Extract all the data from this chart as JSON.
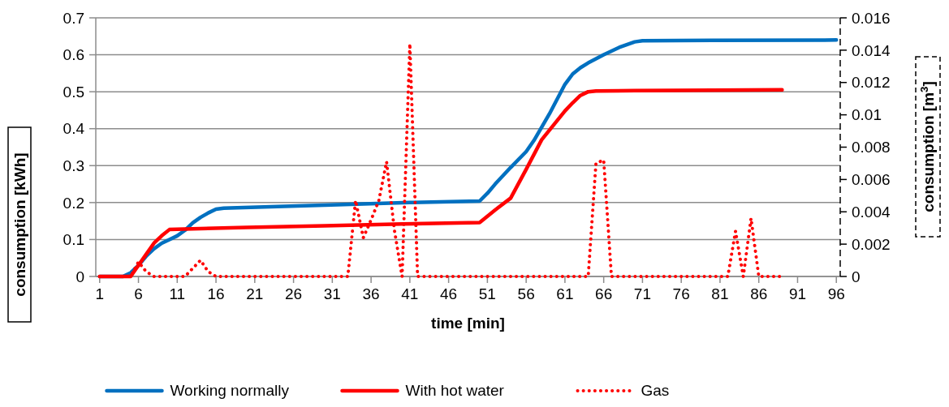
{
  "chart_data": {
    "type": "line",
    "xlabel": "time [min]",
    "ylabel": "consumption [kWh]",
    "y2label": "consumption [m$^{3}$]",
    "xlim": [
      0.5,
      96.5
    ],
    "xticks": [
      1,
      6,
      11,
      16,
      21,
      26,
      31,
      36,
      41,
      46,
      51,
      56,
      61,
      66,
      71,
      76,
      81,
      86,
      91,
      96
    ],
    "ylim": [
      0,
      0.7
    ],
    "yticks": [
      0,
      0.1,
      0.2,
      0.3,
      0.4,
      0.5,
      0.6,
      0.7
    ],
    "y2lim": [
      0,
      0.016
    ],
    "y2ticks": [
      0,
      0.002,
      0.004,
      0.006,
      0.008,
      0.01,
      0.012,
      0.014,
      0.016
    ],
    "grid": "y",
    "legend": "bottom",
    "series": [
      {
        "name": "Working normally",
        "color": "#0070c0",
        "line_style": "solid",
        "x": [
          1,
          4,
          5,
          6,
          7,
          8,
          9,
          10,
          11,
          12,
          13,
          14,
          15,
          16,
          17,
          30,
          41,
          50,
          51,
          52,
          54,
          56,
          57,
          59,
          61,
          62,
          63,
          64,
          66,
          68,
          70,
          71,
          80,
          96
        ],
        "values": [
          0,
          0,
          0.01,
          0.03,
          0.055,
          0.075,
          0.09,
          0.1,
          0.11,
          0.125,
          0.145,
          0.16,
          0.172,
          0.182,
          0.185,
          0.193,
          0.2,
          0.204,
          0.225,
          0.25,
          0.295,
          0.338,
          0.368,
          0.44,
          0.52,
          0.548,
          0.565,
          0.578,
          0.6,
          0.62,
          0.635,
          0.638,
          0.639,
          0.64
        ]
      },
      {
        "name": "With hot water",
        "color": "#ff0000",
        "line_style": "solid",
        "x": [
          1,
          5,
          6,
          7,
          8,
          9,
          10,
          20,
          30,
          40,
          50,
          52,
          54,
          56,
          58,
          61,
          62,
          63,
          64,
          65,
          70,
          80,
          89
        ],
        "values": [
          0,
          0,
          0.03,
          0.06,
          0.09,
          0.11,
          0.127,
          0.133,
          0.137,
          0.142,
          0.146,
          0.18,
          0.212,
          0.29,
          0.37,
          0.448,
          0.47,
          0.49,
          0.5,
          0.502,
          0.503,
          0.504,
          0.505
        ]
      },
      {
        "name": "Gas",
        "color": "#ff0000",
        "line_style": "dotted",
        "axis": "y2",
        "x": [
          1,
          2,
          3,
          4,
          5,
          6,
          7,
          8,
          9,
          10,
          11,
          12,
          13,
          14,
          15,
          16,
          17,
          18,
          19,
          20,
          21,
          22,
          23,
          24,
          25,
          26,
          27,
          28,
          29,
          30,
          31,
          32,
          33,
          34,
          35,
          36,
          37,
          38,
          39,
          40,
          41,
          42,
          43,
          44,
          45,
          46,
          47,
          48,
          49,
          50,
          51,
          52,
          53,
          54,
          55,
          56,
          57,
          58,
          59,
          60,
          61,
          62,
          63,
          64,
          65,
          66,
          67,
          68,
          69,
          70,
          71,
          72,
          73,
          74,
          75,
          76,
          77,
          78,
          79,
          80,
          81,
          82,
          83,
          84,
          85,
          86,
          87,
          88,
          89
        ],
        "values": [
          0,
          0,
          0,
          0,
          0,
          0.0009,
          0.0003,
          0,
          0,
          0,
          0,
          0,
          0.0005,
          0.001,
          0.0003,
          0,
          0,
          0,
          0,
          0,
          0,
          0,
          0,
          0,
          0,
          0,
          0,
          0,
          0,
          0,
          0,
          0,
          0,
          0.0047,
          0.0024,
          0.0035,
          0.0047,
          0.0071,
          0.0029,
          0,
          0.0144,
          0,
          0,
          0,
          0,
          0,
          0,
          0,
          0,
          0,
          0,
          0,
          0,
          0,
          0,
          0,
          0,
          0,
          0,
          0,
          0,
          0,
          0,
          0,
          0.007,
          0.0072,
          0,
          0,
          0,
          0,
          0,
          0,
          0,
          0,
          0,
          0,
          0,
          0,
          0,
          0,
          0,
          0,
          0.0028,
          0,
          0.0036,
          0,
          0,
          0,
          0
        ]
      }
    ]
  }
}
